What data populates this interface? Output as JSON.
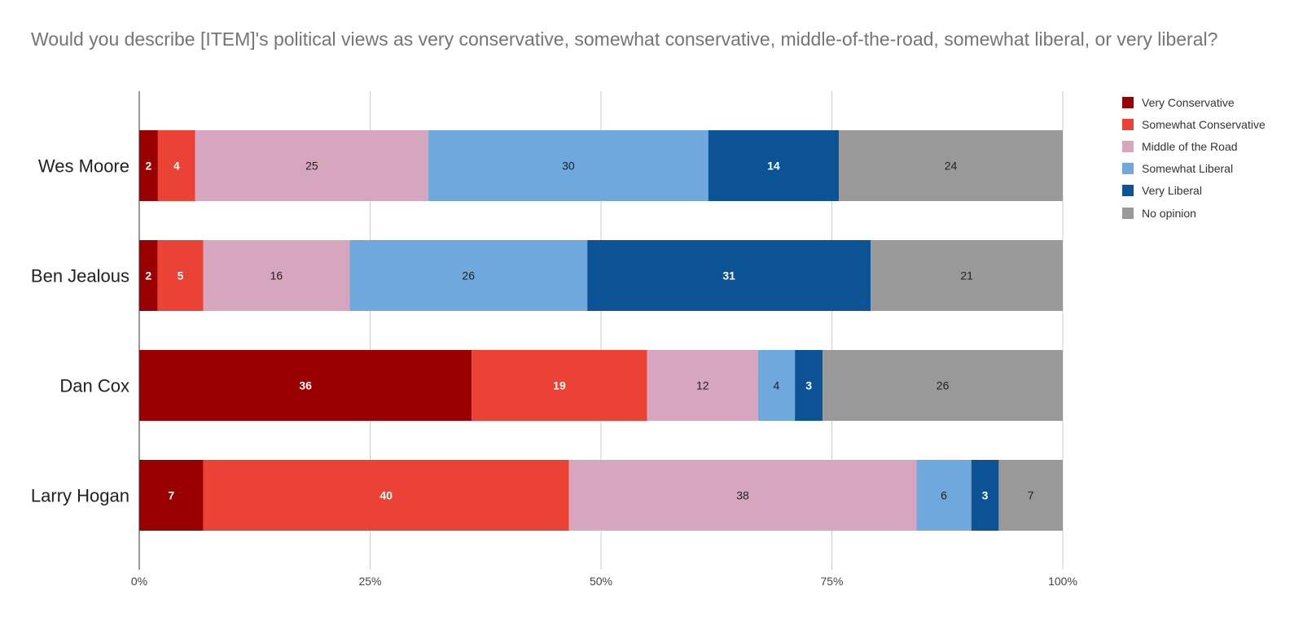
{
  "chart_data": {
    "type": "bar",
    "orientation": "horizontal",
    "stacked": true,
    "normalized_percent": true,
    "title": "Would you describe [ITEM]'s political views as very conservative, somewhat conservative, middle-of-the-road, somewhat liberal, or very liberal?",
    "categories": [
      "Wes Moore",
      "Ben Jealous",
      "Dan Cox",
      "Larry Hogan"
    ],
    "series": [
      {
        "name": "Very Conservative",
        "color": "#990000",
        "label_color": "#ffffff",
        "values": [
          2,
          2,
          36,
          7
        ]
      },
      {
        "name": "Somewhat Conservative",
        "color": "#ea4335",
        "label_color": "#ffffff",
        "values": [
          4,
          5,
          19,
          40
        ]
      },
      {
        "name": "Middle of the Road",
        "color": "#d5a6bd",
        "label_color": "#222222",
        "values": [
          25,
          16,
          12,
          38
        ]
      },
      {
        "name": "Somewhat Liberal",
        "color": "#6fa8dc",
        "label_color": "#222222",
        "values": [
          30,
          26,
          4,
          6
        ]
      },
      {
        "name": "Very Liberal",
        "color": "#0b5394",
        "label_color": "#ffffff",
        "values": [
          14,
          31,
          3,
          3
        ]
      },
      {
        "name": "No opinion",
        "color": "#999999",
        "label_color": "#222222",
        "values": [
          24,
          21,
          26,
          7
        ]
      }
    ],
    "x_ticks": [
      "0%",
      "25%",
      "50%",
      "75%",
      "100%"
    ],
    "x_tick_values": [
      0,
      25,
      50,
      75,
      100
    ],
    "xlim": [
      0,
      100
    ],
    "xlabel": "",
    "ylabel": "",
    "grid": true,
    "legend_position": "right"
  }
}
